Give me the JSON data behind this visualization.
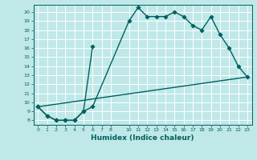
{
  "title": "",
  "xlabel": "Humidex (Indice chaleur)",
  "background_color": "#c0e8e8",
  "grid_color": "#ffffff",
  "line_color": "#006060",
  "xlim": [
    -0.5,
    23.5
  ],
  "ylim": [
    7.5,
    20.8
  ],
  "xtick_vals": [
    0,
    1,
    2,
    3,
    4,
    5,
    6,
    7,
    8,
    10,
    11,
    12,
    13,
    14,
    15,
    16,
    17,
    18,
    19,
    20,
    21,
    22,
    23
  ],
  "xtick_labels": [
    "0",
    "1",
    "2",
    "3",
    "4",
    "5",
    "6",
    "7",
    "8",
    "10",
    "11",
    "12",
    "13",
    "14",
    "15",
    "16",
    "17",
    "18",
    "19",
    "20",
    "21",
    "22",
    "23"
  ],
  "ytick_vals": [
    8,
    9,
    10,
    11,
    12,
    13,
    14,
    15,
    16,
    17,
    18,
    19,
    20
  ],
  "ytick_labels": [
    "8",
    "9",
    "10",
    "11",
    "12",
    "13",
    "14",
    "15",
    "16",
    "17",
    "18",
    "19",
    "20"
  ],
  "curve1_x": [
    0,
    1,
    2,
    3,
    4,
    5,
    6,
    10,
    11,
    12,
    13,
    14,
    15,
    16,
    17,
    18,
    19,
    20,
    21,
    22,
    23
  ],
  "curve1_y": [
    9.5,
    8.5,
    8.0,
    8.0,
    8.0,
    9.0,
    9.5,
    19.0,
    20.5,
    19.5,
    19.5,
    19.5,
    20.0,
    19.5,
    18.5,
    18.0,
    19.5,
    17.5,
    16.0,
    14.0,
    12.8
  ],
  "curve2_x": [
    0,
    1,
    2,
    3,
    4,
    5,
    6
  ],
  "curve2_y": [
    9.5,
    8.5,
    8.0,
    8.0,
    8.0,
    9.0,
    16.2
  ],
  "curve3_x": [
    0,
    23
  ],
  "curve3_y": [
    9.5,
    12.8
  ],
  "marker_size": 2.8,
  "linewidth": 1.0
}
